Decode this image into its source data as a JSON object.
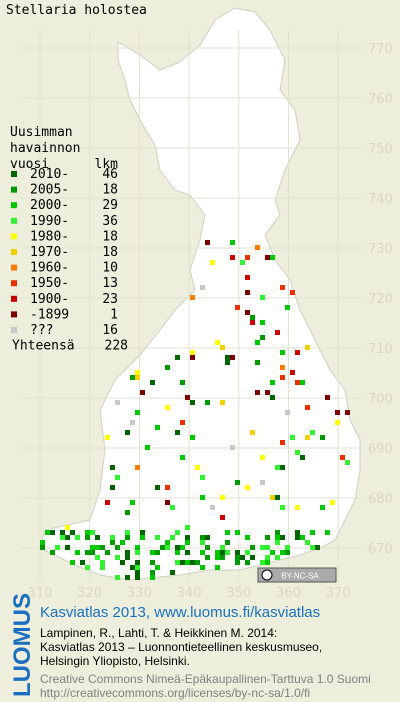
{
  "title": "Stellaria holostea",
  "legend": {
    "heading": [
      "Uusimman",
      "havainnon"
    ],
    "col_headers": [
      "vuosi",
      "lkm"
    ],
    "rows": [
      {
        "label": "2010-",
        "count": 46,
        "color": "#006400"
      },
      {
        "label": "2005-",
        "count": 18,
        "color": "#009a00"
      },
      {
        "label": "2000-",
        "count": 29,
        "color": "#00c800"
      },
      {
        "label": "1990-",
        "count": 36,
        "color": "#32f032"
      },
      {
        "label": "1980-",
        "count": 18,
        "color": "#ffff00"
      },
      {
        "label": "1970-",
        "count": 18,
        "color": "#f0d000"
      },
      {
        "label": "1960-",
        "count": 10,
        "color": "#ff7a00"
      },
      {
        "label": "1950-",
        "count": 13,
        "color": "#e83000"
      },
      {
        "label": "1900-",
        "count": 23,
        "color": "#c80000"
      },
      {
        "label": "-1899",
        "count": 1,
        "color": "#7a0000"
      },
      {
        "label": "???",
        "count": 16,
        "color": "#c8c8c8"
      }
    ],
    "total": {
      "label": "Yhteensä",
      "count": 228
    }
  },
  "grid": {
    "y_labels": [
      "770",
      "760",
      "750",
      "740",
      "730",
      "720",
      "710",
      "700",
      "690",
      "680",
      "670"
    ],
    "x_labels": [
      "310",
      "320",
      "330",
      "340",
      "350",
      "360",
      "370"
    ]
  },
  "license_badge": "BY-NC-SA",
  "footer": {
    "brand": "LUOMUS",
    "headline": "Kasviatlas 2013, www.luomus.fi/kasviatlas",
    "citation": [
      "Lampinen, R., Lahti, T. & Heikkinen M. 2014:",
      "Kasviatlas 2013 – Luonnontieteellinen keskusmuseo,",
      "Helsingin Yliopisto, Helsinki."
    ],
    "license": [
      "Creative Commons Nimeä-Epäkaupallinen-Tarttuva 1.0 Suomi",
      "http://creativecommons.org/licenses/by-nc-sa/1.0/fi"
    ]
  }
}
